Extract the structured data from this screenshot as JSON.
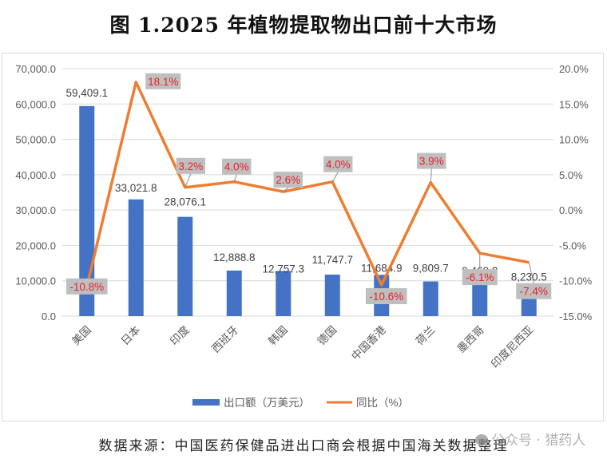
{
  "title": "图 1.2025 年植物提取物出口前十大市场",
  "footer": "数据来源：中国医药保健品进出口商会根据中国海关数据整理",
  "watermark": "公众号 · 猎药人",
  "colors": {
    "bar": "#4472C4",
    "line": "#ED7D31",
    "label_red": "#E8202A",
    "label_bg": "#BFBFBF",
    "grid": "#D9D9D9",
    "axis_text": "#595959"
  },
  "chart_data": {
    "type": "bar+line",
    "title": "图 1.2025 年植物提取物出口前十大市场",
    "xlabel": "",
    "ylabel_left": "出口额（万美元）",
    "ylabel_right": "同比（%）",
    "categories": [
      "美国",
      "日本",
      "印度",
      "西班牙",
      "韩国",
      "德国",
      "中国香港",
      "荷兰",
      "墨西哥",
      "印度尼西亚"
    ],
    "series": [
      {
        "name": "出口额（万美元）",
        "type": "bar",
        "axis": "left",
        "values": [
          59409.1,
          33021.8,
          28076.1,
          12888.8,
          12757.3,
          11747.7,
          11684.9,
          9809.7,
          9468.2,
          8230.5
        ],
        "labels": [
          "59,409.1",
          "33,021.8",
          "28,076.1",
          "12,888.8",
          "12,757.3",
          "11,747.7",
          "11,684.9",
          "9,809.7",
          "9,468.2",
          "8,230.5"
        ]
      },
      {
        "name": "同比（%）",
        "type": "line",
        "axis": "right",
        "values": [
          -10.8,
          18.1,
          3.2,
          4.0,
          2.6,
          4.0,
          -10.6,
          3.9,
          -6.1,
          -7.4
        ],
        "labels": [
          "-10.8%",
          "18.1%",
          "3.2%",
          "4.0%",
          "2.6%",
          "4.0%",
          "-10.6%",
          "3.9%",
          "-6.1%",
          "-7.4%"
        ]
      }
    ],
    "ylim_left": [
      0,
      70000
    ],
    "ylim_right": [
      -15,
      20
    ],
    "left_ticks": [
      "70,000.0",
      "60,000.0",
      "50,000.0",
      "40,000.0",
      "30,000.0",
      "20,000.0",
      "10,000.0",
      "0.0"
    ],
    "right_ticks": [
      "20.0%",
      "15.0%",
      "10.0%",
      "5.0%",
      "0.0%",
      "-5.0%",
      "-10.0%",
      "-15.0%"
    ],
    "grid": true,
    "legend_position": "bottom",
    "legend": [
      {
        "name": "出口额（万美元）",
        "type": "bar"
      },
      {
        "name": "同比（%）",
        "type": "line"
      }
    ]
  }
}
